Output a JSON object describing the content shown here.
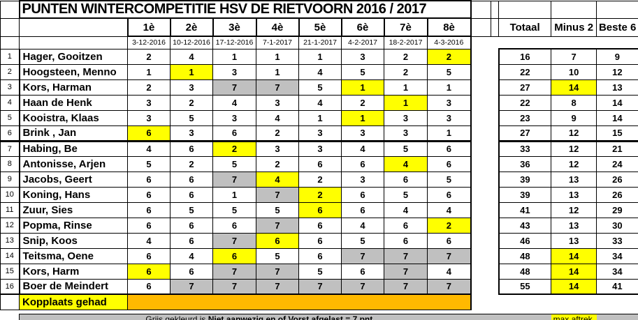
{
  "title": "PUNTEN WINTERCOMPETITIE HSV DE RIETVOORN 2016 / 2017",
  "columns": {
    "rounds": [
      "1è",
      "2è",
      "3è",
      "4è",
      "5è",
      "6è",
      "7è",
      "8è"
    ],
    "dates": [
      "3-12-2016",
      "10-12-2016",
      "17-12-2016",
      "7-1-2017",
      "21-1-2017",
      "4-2-2017",
      "18-2-2017",
      "4-3-2016"
    ],
    "totaal": "Totaal",
    "minus2": "Minus 2",
    "beste6": "Beste 6"
  },
  "rows": [
    {
      "rank": 1,
      "name": "Hager, Gooitzen",
      "scores": [
        2,
        4,
        1,
        1,
        1,
        3,
        2,
        2
      ],
      "yellow": [
        8
      ],
      "grey": [],
      "totaal": 16,
      "minus2": 7,
      "minus2_yellow": false,
      "beste6": 9
    },
    {
      "rank": 2,
      "name": "Hoogsteen, Menno",
      "scores": [
        1,
        1,
        3,
        1,
        4,
        5,
        2,
        5
      ],
      "yellow": [
        2
      ],
      "grey": [],
      "totaal": 22,
      "minus2": 10,
      "minus2_yellow": false,
      "beste6": 12
    },
    {
      "rank": 3,
      "name": "Kors, Harman",
      "scores": [
        2,
        3,
        7,
        7,
        5,
        1,
        1,
        1
      ],
      "yellow": [
        6
      ],
      "grey": [
        3,
        4
      ],
      "totaal": 27,
      "minus2": 14,
      "minus2_yellow": true,
      "beste6": 13
    },
    {
      "rank": 4,
      "name": "Haan de Henk",
      "scores": [
        3,
        2,
        4,
        3,
        4,
        2,
        1,
        3
      ],
      "yellow": [
        7
      ],
      "grey": [],
      "totaal": 22,
      "minus2": 8,
      "minus2_yellow": false,
      "beste6": 14
    },
    {
      "rank": 5,
      "name": "Kooistra, Klaas",
      "scores": [
        3,
        5,
        3,
        4,
        1,
        1,
        3,
        3
      ],
      "yellow": [
        6
      ],
      "grey": [],
      "totaal": 23,
      "minus2": 9,
      "minus2_yellow": false,
      "beste6": 14
    },
    {
      "rank": 6,
      "name": "Brink , Jan",
      "scores": [
        6,
        3,
        6,
        2,
        3,
        3,
        3,
        1
      ],
      "yellow": [
        1
      ],
      "grey": [],
      "totaal": 27,
      "minus2": 12,
      "minus2_yellow": false,
      "beste6": 15
    },
    {
      "rank": 7,
      "name": "Habing, Be",
      "scores": [
        4,
        6,
        2,
        3,
        3,
        4,
        5,
        6
      ],
      "yellow": [
        3
      ],
      "grey": [],
      "totaal": 33,
      "minus2": 12,
      "minus2_yellow": false,
      "beste6": 21
    },
    {
      "rank": 8,
      "name": "Antonisse, Arjen",
      "scores": [
        5,
        2,
        5,
        2,
        6,
        6,
        4,
        6
      ],
      "yellow": [
        7
      ],
      "grey": [],
      "totaal": 36,
      "minus2": 12,
      "minus2_yellow": false,
      "beste6": 24
    },
    {
      "rank": 9,
      "name": "Jacobs, Geert",
      "scores": [
        6,
        6,
        7,
        4,
        2,
        3,
        6,
        5
      ],
      "yellow": [
        4
      ],
      "grey": [
        3
      ],
      "totaal": 39,
      "minus2": 13,
      "minus2_yellow": false,
      "beste6": 26
    },
    {
      "rank": 10,
      "name": "Koning, Hans",
      "scores": [
        6,
        6,
        1,
        7,
        2,
        6,
        5,
        6
      ],
      "yellow": [
        5
      ],
      "grey": [
        4
      ],
      "totaal": 39,
      "minus2": 13,
      "minus2_yellow": false,
      "beste6": 26
    },
    {
      "rank": 11,
      "name": "Zuur, Sies",
      "scores": [
        6,
        5,
        5,
        5,
        6,
        6,
        4,
        4
      ],
      "yellow": [
        5
      ],
      "grey": [],
      "totaal": 41,
      "minus2": 12,
      "minus2_yellow": false,
      "beste6": 29
    },
    {
      "rank": 12,
      "name": "Popma, Rinse",
      "scores": [
        6,
        6,
        6,
        7,
        6,
        4,
        6,
        2
      ],
      "yellow": [
        8
      ],
      "grey": [
        4
      ],
      "totaal": 43,
      "minus2": 13,
      "minus2_yellow": false,
      "beste6": 30
    },
    {
      "rank": 13,
      "name": "Snip, Koos",
      "scores": [
        4,
        6,
        7,
        6,
        6,
        5,
        6,
        6
      ],
      "yellow": [
        4
      ],
      "grey": [
        3
      ],
      "totaal": 46,
      "minus2": 13,
      "minus2_yellow": false,
      "beste6": 33
    },
    {
      "rank": 14,
      "name": "Teitsma, Oene",
      "scores": [
        6,
        4,
        6,
        5,
        6,
        7,
        7,
        7
      ],
      "yellow": [
        3
      ],
      "grey": [
        6,
        7,
        8
      ],
      "totaal": 48,
      "minus2": 14,
      "minus2_yellow": true,
      "beste6": 34
    },
    {
      "rank": 15,
      "name": "Kors, Harm",
      "scores": [
        6,
        6,
        7,
        7,
        5,
        6,
        7,
        4
      ],
      "yellow": [
        1
      ],
      "grey": [
        3,
        4,
        7
      ],
      "totaal": 48,
      "minus2": 14,
      "minus2_yellow": true,
      "beste6": 34
    },
    {
      "rank": 16,
      "name": "Boer de Meindert",
      "scores": [
        6,
        7,
        7,
        7,
        7,
        7,
        7,
        7
      ],
      "yellow": [],
      "grey": [
        2,
        3,
        4,
        5,
        6,
        7,
        8
      ],
      "totaal": 55,
      "minus2": 14,
      "minus2_yellow": true,
      "beste6": 41
    }
  ],
  "kopplaats": {
    "label": "Kopplaats gehad"
  },
  "footer": {
    "note_normal": "Grijs gekleurd is ",
    "note_bold": "Niet aanwezig en of Vorst afgelast = 7 pnt",
    "max_aftrek": "max aftrek"
  },
  "colors": {
    "highlight_yellow": "#FFFF00",
    "absent_grey": "#C0C0C0",
    "kopplaats_orange": "#FFB900"
  }
}
